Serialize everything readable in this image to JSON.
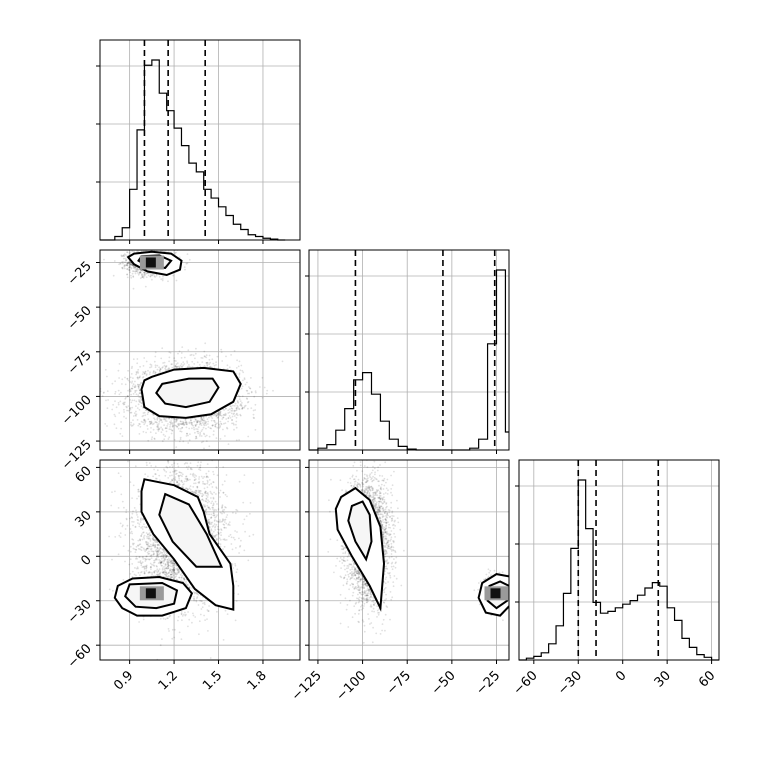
{
  "chart_data": {
    "type": "corner",
    "parameters": [
      {
        "range": [
          0.7,
          2.05
        ],
        "ticks": [
          0.9,
          1.2,
          1.5,
          1.8
        ],
        "tick_labels": [
          "0.9",
          "1.2",
          "1.5",
          "1.8"
        ],
        "hist": {
          "edges": [
            0.7,
            0.8,
            0.85,
            0.9,
            0.95,
            1.0,
            1.05,
            1.1,
            1.15,
            1.2,
            1.25,
            1.3,
            1.35,
            1.4,
            1.45,
            1.5,
            1.55,
            1.6,
            1.65,
            1.7,
            1.75,
            1.8,
            1.85,
            1.9,
            1.95
          ],
          "counts": [
            0.0,
            0.02,
            0.07,
            0.29,
            0.63,
            1.0,
            1.03,
            0.84,
            0.74,
            0.64,
            0.54,
            0.44,
            0.39,
            0.29,
            0.24,
            0.19,
            0.14,
            0.09,
            0.06,
            0.03,
            0.02,
            0.01,
            0.005,
            0.0
          ]
        },
        "quantiles": [
          1.0,
          1.16,
          1.41
        ]
      },
      {
        "range": [
          -130,
          -18
        ],
        "ticks": [
          -125,
          -100,
          -75,
          -50,
          -25
        ],
        "tick_labels": [
          "−125",
          "−100",
          "−75",
          "−50",
          "−25"
        ],
        "hist": {
          "edges": [
            -130,
            -125,
            -120,
            -115,
            -110,
            -105,
            -100,
            -95,
            -90,
            -85,
            -80,
            -75,
            -70,
            -65,
            -60,
            -55,
            -50,
            -45,
            -40,
            -35,
            -30,
            -25,
            -20,
            -18
          ],
          "counts": [
            0.0,
            0.01,
            0.03,
            0.11,
            0.23,
            0.39,
            0.43,
            0.31,
            0.16,
            0.06,
            0.02,
            0.005,
            0.0,
            0.0,
            0.0,
            0.0,
            0.0,
            0.0,
            0.01,
            0.06,
            0.59,
            1.0,
            0.1
          ]
        },
        "quantiles": [
          -104,
          -55,
          -26
        ]
      },
      {
        "range": [
          -70,
          65
        ],
        "ticks": [
          -60,
          -30,
          0,
          30,
          60
        ],
        "tick_labels": [
          "−60",
          "−30",
          "0",
          "30",
          "60"
        ],
        "hist": {
          "edges": [
            -70,
            -65,
            -60,
            -55,
            -50,
            -45,
            -40,
            -35,
            -30,
            -25,
            -20,
            -15,
            -10,
            -5,
            0,
            5,
            10,
            15,
            20,
            25,
            30,
            35,
            40,
            45,
            50,
            55,
            60,
            65
          ],
          "counts": [
            0.0,
            0.01,
            0.02,
            0.04,
            0.09,
            0.19,
            0.37,
            0.62,
            1.0,
            0.73,
            0.32,
            0.26,
            0.27,
            0.29,
            0.31,
            0.33,
            0.36,
            0.4,
            0.43,
            0.41,
            0.29,
            0.22,
            0.12,
            0.07,
            0.03,
            0.015,
            0.0
          ]
        },
        "quantiles": [
          -30,
          -18,
          24
        ]
      }
    ],
    "scatter_panels": [
      {
        "x_param": 0,
        "y_param": 1,
        "clusters": [
          {
            "center": [
              1.05,
              -25
            ],
            "spread": [
              0.08,
              3.5
            ],
            "points": 1500,
            "core": 4
          },
          {
            "center": [
              1.28,
              -100
            ],
            "spread": [
              0.18,
              9
            ],
            "points": 3500,
            "core": 1
          }
        ],
        "contours": [
          {
            "kind": "outer",
            "points": [
              [
                0.93,
                -20
              ],
              [
                1.05,
                -19
              ],
              [
                1.18,
                -20
              ],
              [
                1.25,
                -24
              ],
              [
                1.24,
                -29
              ],
              [
                1.15,
                -32
              ],
              [
                1.02,
                -30
              ],
              [
                0.93,
                -26
              ],
              [
                0.89,
                -22
              ]
            ]
          },
          {
            "kind": "inner",
            "points": [
              [
                0.98,
                -21.5
              ],
              [
                1.1,
                -21
              ],
              [
                1.18,
                -24
              ],
              [
                1.14,
                -28
              ],
              [
                1.02,
                -27
              ],
              [
                0.96,
                -24
              ]
            ]
          },
          {
            "kind": "outer",
            "points": [
              [
                1.05,
                -89
              ],
              [
                1.2,
                -85
              ],
              [
                1.4,
                -84
              ],
              [
                1.6,
                -86
              ],
              [
                1.65,
                -93
              ],
              [
                1.6,
                -103
              ],
              [
                1.45,
                -110
              ],
              [
                1.28,
                -112
              ],
              [
                1.1,
                -111
              ],
              [
                1.0,
                -106
              ],
              [
                0.98,
                -96
              ],
              [
                1.0,
                -91
              ]
            ]
          },
          {
            "kind": "inner",
            "points": [
              [
                1.12,
                -93
              ],
              [
                1.3,
                -90
              ],
              [
                1.46,
                -90
              ],
              [
                1.5,
                -95
              ],
              [
                1.44,
                -103
              ],
              [
                1.28,
                -106
              ],
              [
                1.14,
                -104
              ],
              [
                1.08,
                -98
              ]
            ]
          }
        ]
      },
      {
        "x_param": 0,
        "y_param": 2,
        "clusters": [
          {
            "center": [
              1.05,
              -25
            ],
            "spread": [
              0.08,
              5
            ],
            "points": 1500,
            "core": 4
          },
          {
            "center": [
              1.25,
              12
            ],
            "spread": [
              0.15,
              22
            ],
            "points": 3500,
            "core": 1
          }
        ],
        "contours": [
          {
            "kind": "outer",
            "points": [
              [
                1.0,
                52
              ],
              [
                1.2,
                48
              ],
              [
                1.36,
                40
              ],
              [
                1.4,
                30
              ],
              [
                1.44,
                15
              ],
              [
                1.58,
                -5
              ],
              [
                1.6,
                -20
              ],
              [
                1.6,
                -36
              ],
              [
                1.48,
                -33
              ],
              [
                1.34,
                -22
              ],
              [
                1.2,
                -2
              ],
              [
                1.06,
                15
              ],
              [
                0.98,
                30
              ],
              [
                0.98,
                44
              ]
            ]
          },
          {
            "kind": "inner",
            "points": [
              [
                1.14,
                42
              ],
              [
                1.3,
                35
              ],
              [
                1.42,
                15
              ],
              [
                1.52,
                -7
              ],
              [
                1.35,
                -7
              ],
              [
                1.19,
                10
              ],
              [
                1.1,
                28
              ]
            ]
          },
          {
            "kind": "outer",
            "points": [
              [
                0.82,
                -20
              ],
              [
                0.92,
                -15
              ],
              [
                1.1,
                -14
              ],
              [
                1.26,
                -18
              ],
              [
                1.32,
                -25
              ],
              [
                1.28,
                -35
              ],
              [
                1.12,
                -40
              ],
              [
                0.95,
                -40
              ],
              [
                0.85,
                -35
              ],
              [
                0.8,
                -28
              ]
            ]
          },
          {
            "kind": "inner",
            "points": [
              [
                0.9,
                -19
              ],
              [
                1.12,
                -18
              ],
              [
                1.22,
                -23
              ],
              [
                1.2,
                -32
              ],
              [
                1.08,
                -35
              ],
              [
                0.94,
                -34
              ],
              [
                0.87,
                -27
              ]
            ]
          }
        ]
      },
      {
        "x_param": 1,
        "y_param": 2,
        "clusters": [
          {
            "center": [
              -97,
              10
            ],
            "spread": [
              6,
              20
            ],
            "points": 3500,
            "core": 1
          },
          {
            "center": [
              -25,
              -25
            ],
            "spread": [
              3.5,
              5
            ],
            "points": 1500,
            "core": 4
          }
        ],
        "contours": [
          {
            "kind": "outer",
            "points": [
              [
                -112,
                40
              ],
              [
                -104,
                46
              ],
              [
                -96,
                38
              ],
              [
                -90,
                20
              ],
              [
                -88,
                -5
              ],
              [
                -90,
                -35
              ],
              [
                -96,
                -20
              ],
              [
                -106,
                0
              ],
              [
                -114,
                18
              ],
              [
                -115,
                32
              ]
            ]
          },
          {
            "kind": "inner",
            "points": [
              [
                -106,
                34
              ],
              [
                -100,
                37
              ],
              [
                -96,
                28
              ],
              [
                -95,
                10
              ],
              [
                -98,
                -2
              ],
              [
                -104,
                10
              ],
              [
                -108,
                24
              ]
            ]
          },
          {
            "kind": "outer",
            "points": [
              [
                -33,
                -18
              ],
              [
                -25,
                -12
              ],
              [
                -16,
                -14
              ],
              [
                -15,
                -30
              ],
              [
                -23,
                -40
              ],
              [
                -31,
                -38
              ],
              [
                -35,
                -28
              ]
            ]
          },
          {
            "kind": "inner",
            "points": [
              [
                -29,
                -20
              ],
              [
                -23,
                -17
              ],
              [
                -18,
                -20
              ],
              [
                -19,
                -30
              ],
              [
                -25,
                -35
              ],
              [
                -30,
                -30
              ]
            ]
          }
        ]
      }
    ]
  }
}
